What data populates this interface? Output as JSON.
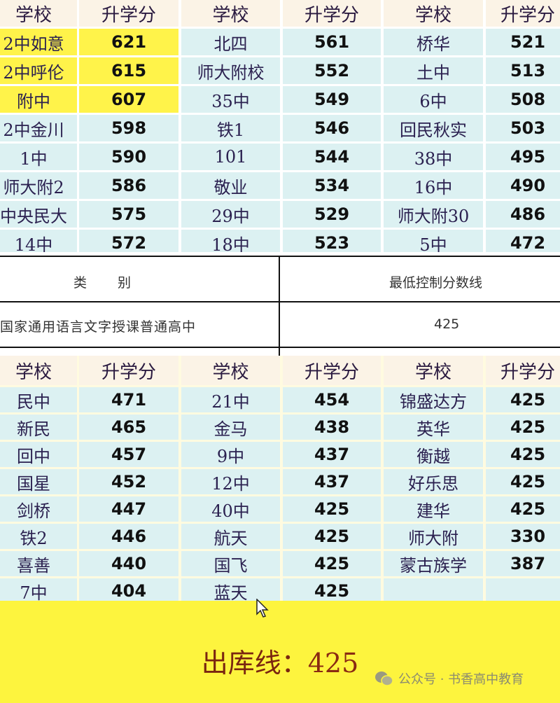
{
  "headers": [
    "学校",
    "升学分",
    "学校",
    "升学分",
    "学校",
    "升学分"
  ],
  "top_table": [
    [
      {
        "s": "2中如意",
        "v": "621",
        "hl": true
      },
      {
        "s": "北四",
        "v": "561"
      },
      {
        "s": "桥华",
        "v": "521"
      }
    ],
    [
      {
        "s": "2中呼伦",
        "v": "615",
        "hl": true
      },
      {
        "s": "师大附校",
        "v": "552"
      },
      {
        "s": "土中",
        "v": "513"
      }
    ],
    [
      {
        "s": "附中",
        "v": "607",
        "hl": true
      },
      {
        "s": "35中",
        "v": "549"
      },
      {
        "s": "6中",
        "v": "508"
      }
    ],
    [
      {
        "s": "2中金川",
        "v": "598"
      },
      {
        "s": "铁1",
        "v": "546"
      },
      {
        "s": "回民秋实",
        "v": "503"
      }
    ],
    [
      {
        "s": "1中",
        "v": "590"
      },
      {
        "s": "101",
        "v": "544"
      },
      {
        "s": "38中",
        "v": "495"
      }
    ],
    [
      {
        "s": "师大附2",
        "v": "586"
      },
      {
        "s": "敬业",
        "v": "534"
      },
      {
        "s": "16中",
        "v": "490"
      }
    ],
    [
      {
        "s": "中央民大",
        "v": "575"
      },
      {
        "s": "29中",
        "v": "529"
      },
      {
        "s": "师大附30",
        "v": "486"
      }
    ],
    [
      {
        "s": "14中",
        "v": "572"
      },
      {
        "s": "18中",
        "v": "523"
      },
      {
        "s": "5中",
        "v": "472"
      }
    ]
  ],
  "control_table": {
    "col1_header": "类　　别",
    "col2_header": "最低控制分数线",
    "category": "国家通用语言文字授课普通高中",
    "score": "425"
  },
  "bottom_table": [
    [
      {
        "s": "民中",
        "v": "471"
      },
      {
        "s": "21中",
        "v": "454"
      },
      {
        "s": "锦盛达方",
        "v": "425"
      }
    ],
    [
      {
        "s": "新民",
        "v": "465"
      },
      {
        "s": "金马",
        "v": "438"
      },
      {
        "s": "英华",
        "v": "425"
      }
    ],
    [
      {
        "s": "回中",
        "v": "457"
      },
      {
        "s": "9中",
        "v": "437"
      },
      {
        "s": "衡越",
        "v": "425"
      }
    ],
    [
      {
        "s": "国星",
        "v": "452"
      },
      {
        "s": "12中",
        "v": "437"
      },
      {
        "s": "好乐思",
        "v": "425"
      }
    ],
    [
      {
        "s": "剑桥",
        "v": "447"
      },
      {
        "s": "40中",
        "v": "425"
      },
      {
        "s": "建华",
        "v": "425"
      }
    ],
    [
      {
        "s": "铁2",
        "v": "446"
      },
      {
        "s": "航天",
        "v": "425"
      },
      {
        "s": "师大附",
        "v": "330"
      }
    ],
    [
      {
        "s": "喜善",
        "v": "440"
      },
      {
        "s": "国飞",
        "v": "425"
      },
      {
        "s": "蒙古族学",
        "v": "387"
      }
    ],
    [
      {
        "s": "7中",
        "v": "404"
      },
      {
        "s": "蓝天",
        "v": "425"
      },
      {
        "s": "",
        "v": ""
      }
    ]
  ],
  "footer": {
    "label": "出库线：",
    "value": "425"
  },
  "watermark": {
    "icon": "wechat-icon",
    "text": "公众号 · 书香高中教育"
  },
  "colors": {
    "highlight": "#fff34a",
    "cell": "#dcf1f2",
    "header": "#fbf3e6",
    "footer": "#fdf43e"
  }
}
